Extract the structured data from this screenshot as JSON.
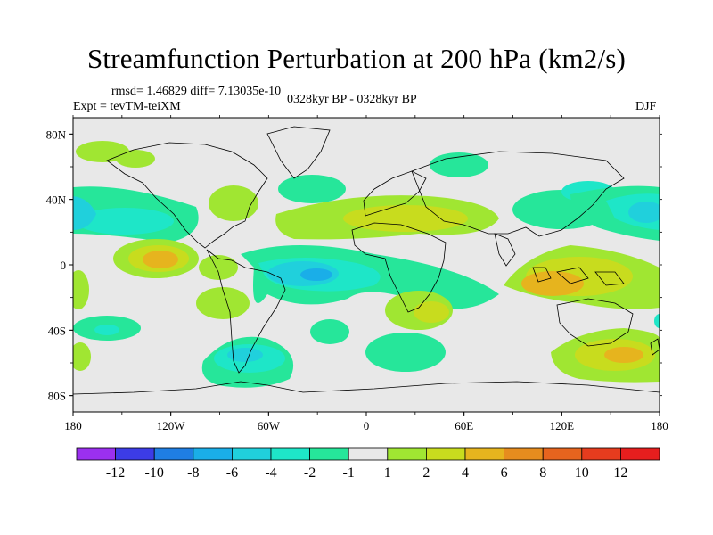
{
  "title": "Streamfunction Perturbation at 200 hPa (km2/s)",
  "stats": "rmsd= 1.46829  diff= 7.13035e-10",
  "experiment": "Expt = tevTM-teiXM",
  "period": "0328kyr BP - 0328kyr BP",
  "season": "DJF",
  "lat_ticks": [
    "80N",
    "40N",
    "0",
    "40S",
    "80S"
  ],
  "lon_ticks": [
    "180",
    "120W",
    "60W",
    "0",
    "60E",
    "120E",
    "180"
  ],
  "colorbar": {
    "labels": [
      "-12",
      "-10",
      "-8",
      "-6",
      "-4",
      "-2",
      "-1",
      "1",
      "2",
      "4",
      "6",
      "8",
      "10",
      "12"
    ],
    "colors": [
      "#9b30ef",
      "#3c3ce6",
      "#1f7ee3",
      "#1aaee8",
      "#20d0dc",
      "#1ee6c8",
      "#26e69a",
      "#e8e8e8",
      "#a0e632",
      "#c8dc1e",
      "#e6b41e",
      "#e68c1e",
      "#e6641e",
      "#e63c1e",
      "#e61e1e"
    ]
  },
  "chart_data": {
    "type": "heatmap",
    "title": "Streamfunction Perturbation at 200 hPa (km2/s)",
    "xlim": [
      -180,
      180
    ],
    "ylim": [
      -90,
      90
    ],
    "anomalies": [
      {
        "lon": -160,
        "lat": 62,
        "value": 2
      },
      {
        "lon": -110,
        "lat": 70,
        "value": 2
      },
      {
        "lon": -100,
        "lat": 36,
        "value": 2
      },
      {
        "lon": -150,
        "lat": 28,
        "value": -2
      },
      {
        "lon": -60,
        "lat": 40,
        "value": -2
      },
      {
        "lon": -120,
        "lat": 2,
        "value": 6
      },
      {
        "lon": -150,
        "lat": 4,
        "value": 2
      },
      {
        "lon": -90,
        "lat": 0,
        "value": 2
      },
      {
        "lon": -85,
        "lat": -22,
        "value": 2
      },
      {
        "lon": -50,
        "lat": -10,
        "value": -4
      },
      {
        "lon": -10,
        "lat": -5,
        "value": -2
      },
      {
        "lon": -135,
        "lat": -38,
        "value": -2
      },
      {
        "lon": -170,
        "lat": -60,
        "value": 2
      },
      {
        "lon": -75,
        "lat": -60,
        "value": -4
      },
      {
        "lon": -35,
        "lat": -62,
        "value": -2
      },
      {
        "lon": 20,
        "lat": -52,
        "value": -2
      },
      {
        "lon": 40,
        "lat": -25,
        "value": 4
      },
      {
        "lon": 50,
        "lat": 32,
        "value": 4
      },
      {
        "lon": 25,
        "lat": 62,
        "value": -2
      },
      {
        "lon": 110,
        "lat": 10,
        "value": 4
      },
      {
        "lon": 160,
        "lat": 28,
        "value": -4
      },
      {
        "lon": 160,
        "lat": -1,
        "value": 4
      },
      {
        "lon": 160,
        "lat": -55,
        "value": 4
      }
    ]
  }
}
